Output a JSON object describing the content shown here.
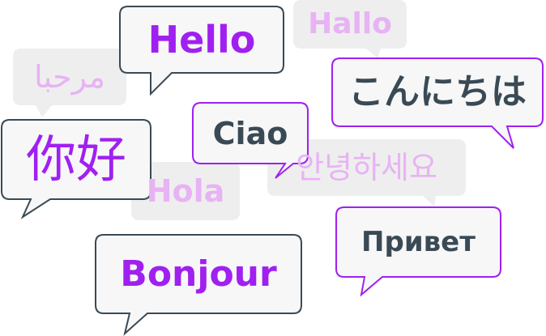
{
  "colors": {
    "purple": "#a020f0",
    "slate": "#3a4a55",
    "faded_text": "#e7b3f4",
    "faded_fill": "#eeeeee",
    "bubble_fill": "#f7f7f8"
  },
  "greetings": [
    {
      "id": "hallo",
      "text": "Hallo"
    },
    {
      "id": "marhaba",
      "text": "مرحبا"
    },
    {
      "id": "hola",
      "text": "Hola"
    },
    {
      "id": "annyeong",
      "text": "안녕하세요"
    },
    {
      "id": "hello",
      "text": "Hello"
    },
    {
      "id": "konnichiwa",
      "text": "こんにちは"
    },
    {
      "id": "nihao",
      "text": "你好"
    },
    {
      "id": "ciao",
      "text": "Ciao"
    },
    {
      "id": "privet",
      "text": "Привет"
    },
    {
      "id": "bonjour",
      "text": "Bonjour"
    }
  ]
}
